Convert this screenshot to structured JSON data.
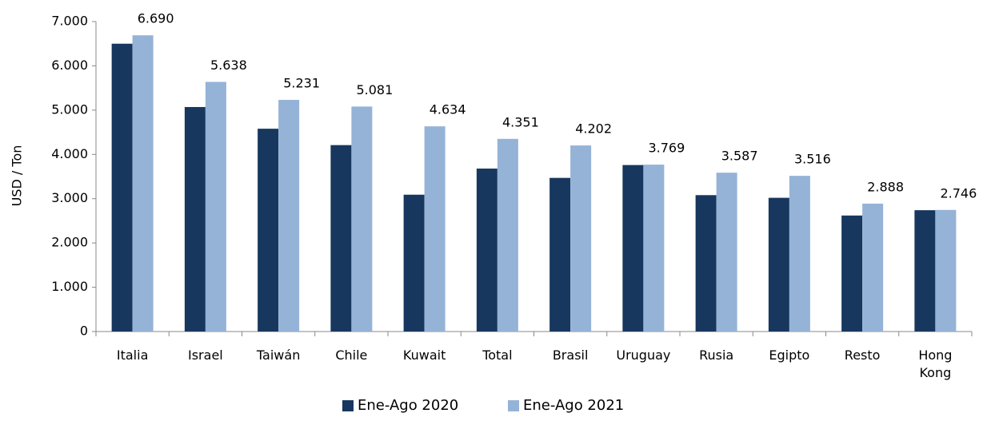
{
  "chart_data": {
    "type": "bar",
    "categories": [
      "Italia",
      "Israel",
      "Taiwán",
      "Chile",
      "Kuwait",
      "Total",
      "Brasil",
      "Uruguay",
      "Rusia",
      "Egipto",
      "Resto",
      "Hong Kong"
    ],
    "series": [
      {
        "name": "Ene-Ago 2020",
        "color": "#17375e",
        "values": [
          6500,
          5070,
          4580,
          4210,
          3090,
          3680,
          3470,
          3760,
          3080,
          3020,
          2620,
          2740
        ]
      },
      {
        "name": "Ene-Ago 2021",
        "color": "#95b3d7",
        "values": [
          6690,
          5638,
          5231,
          5081,
          4634,
          4351,
          4202,
          3769,
          3587,
          3516,
          2888,
          2746
        ],
        "value_labels": [
          "6.690",
          "5.638",
          "5.231",
          "5.081",
          "4.634",
          "4.351",
          "4.202",
          "3.769",
          "3.587",
          "3.516",
          "2.888",
          "2.746"
        ]
      }
    ],
    "ylabel": "USD / Ton",
    "ylim": [
      0,
      7000
    ],
    "yticks": [
      {
        "value": 0,
        "label": "0"
      },
      {
        "value": 1000,
        "label": "1.000"
      },
      {
        "value": 2000,
        "label": "2.000"
      },
      {
        "value": 3000,
        "label": "3.000"
      },
      {
        "value": 4000,
        "label": "4.000"
      },
      {
        "value": 5000,
        "label": "5.000"
      },
      {
        "value": 6000,
        "label": "6.000"
      },
      {
        "value": 7000,
        "label": "7.000"
      }
    ],
    "legend": "bottom"
  }
}
